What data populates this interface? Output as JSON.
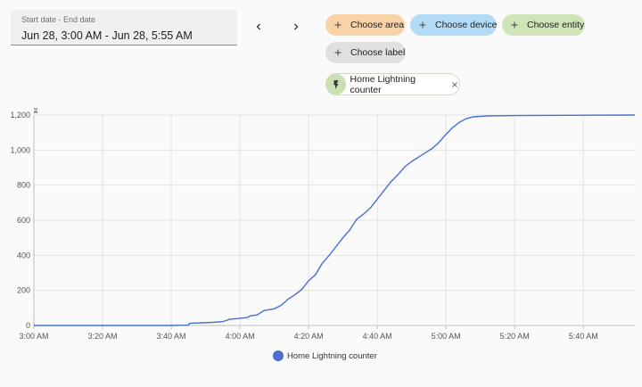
{
  "date_range": {
    "label": "Start date - End date",
    "value": "Jun 28, 3:00 AM - Jun 28, 5:55 AM"
  },
  "nav": {
    "prev_icon": "chevron-left-icon",
    "next_icon": "chevron-right-icon"
  },
  "target_chips": [
    {
      "label": "Choose area",
      "color": "#f9d2a8"
    },
    {
      "label": "Choose device",
      "color": "#b3dbf6"
    },
    {
      "label": "Choose entity",
      "color": "#cfe5b8"
    },
    {
      "label": "Choose label",
      "color": "#e0e0e0"
    }
  ],
  "selected_entity": {
    "name": "Home Lightning counter",
    "icon": "lightning-bolt-icon",
    "icon_bg": "#c9e0b2"
  },
  "legend": {
    "series_name": "Home Lightning counter",
    "color": "#4a6fd1"
  },
  "chart_data": {
    "type": "line",
    "title": "",
    "xlabel": "",
    "ylabel": "",
    "x_tick_labels": [
      "3:00 AM",
      "3:20 AM",
      "3:40 AM",
      "4:00 AM",
      "4:20 AM",
      "4:40 AM",
      "5:00 AM",
      "5:20 AM",
      "5:40 AM"
    ],
    "x_range_minutes_from_3am": [
      0,
      175
    ],
    "y_ticks": [
      "0",
      "200",
      "400",
      "600",
      "800",
      "1,000",
      "1,200"
    ],
    "ylim": [
      0,
      1200
    ],
    "grid": true,
    "series": [
      {
        "name": "Home Lightning counter",
        "color": "#4a6fd1",
        "points_minutes_from_3am": [
          [
            0,
            0
          ],
          [
            20,
            0
          ],
          [
            40,
            0
          ],
          [
            45,
            2
          ],
          [
            45.3,
            12
          ],
          [
            52,
            18
          ],
          [
            55,
            22
          ],
          [
            57,
            35
          ],
          [
            62,
            45
          ],
          [
            63,
            55
          ],
          [
            65,
            60
          ],
          [
            67,
            85
          ],
          [
            70,
            95
          ],
          [
            72,
            115
          ],
          [
            74,
            150
          ],
          [
            76,
            175
          ],
          [
            78,
            205
          ],
          [
            80,
            255
          ],
          [
            82,
            290
          ],
          [
            84,
            355
          ],
          [
            86,
            400
          ],
          [
            88,
            450
          ],
          [
            90,
            500
          ],
          [
            92,
            545
          ],
          [
            94,
            605
          ],
          [
            96,
            635
          ],
          [
            98,
            670
          ],
          [
            100,
            720
          ],
          [
            102,
            770
          ],
          [
            104,
            820
          ],
          [
            106,
            860
          ],
          [
            108,
            905
          ],
          [
            110,
            935
          ],
          [
            112,
            960
          ],
          [
            114,
            985
          ],
          [
            116,
            1010
          ],
          [
            118,
            1045
          ],
          [
            120,
            1090
          ],
          [
            122,
            1130
          ],
          [
            124,
            1160
          ],
          [
            126,
            1180
          ],
          [
            128,
            1190
          ],
          [
            132,
            1195
          ],
          [
            140,
            1197
          ],
          [
            160,
            1199
          ],
          [
            175,
            1200
          ]
        ]
      }
    ]
  }
}
